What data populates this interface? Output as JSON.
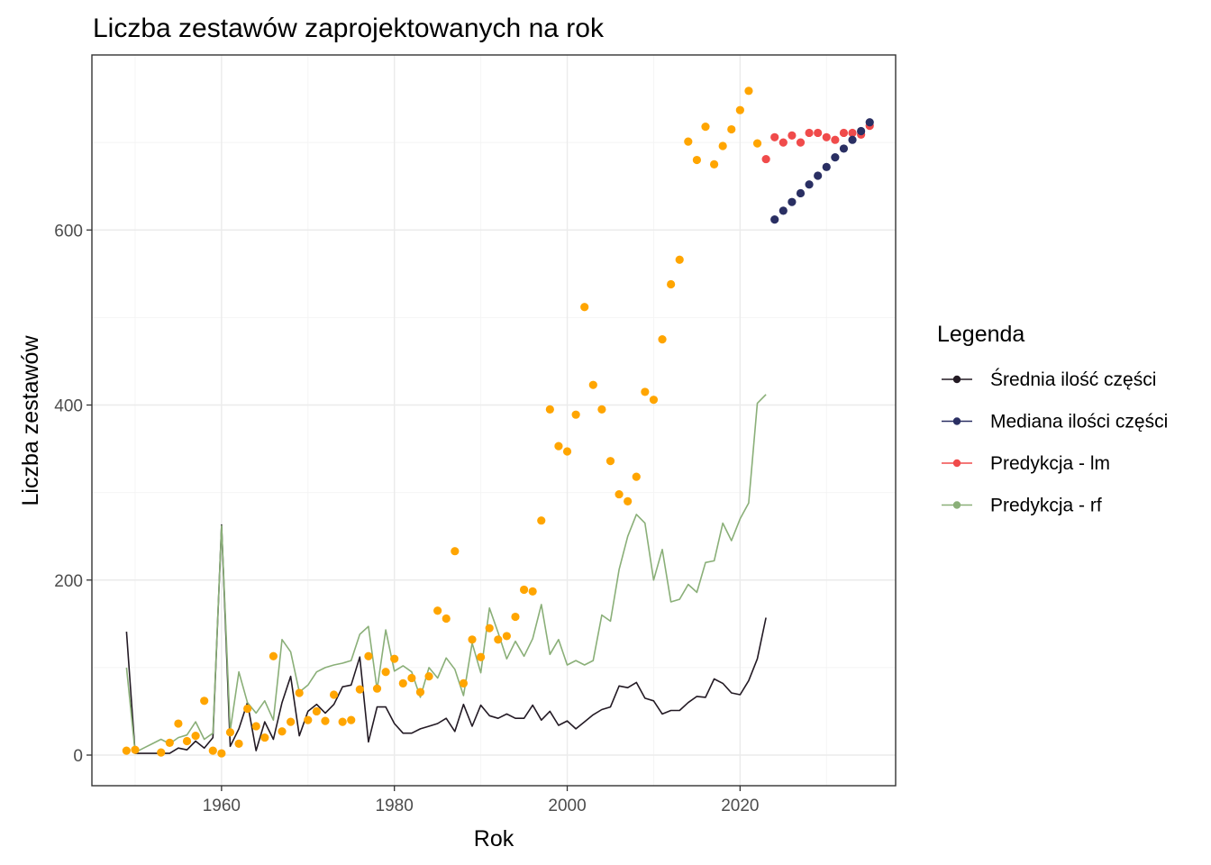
{
  "chart_data": {
    "type": "line",
    "title": "Liczba zestawów zaprojektowanych na rok",
    "xlabel": "Rok",
    "ylabel": "Liczba zestawów",
    "xlim": [
      1945,
      2038
    ],
    "ylim": [
      -35,
      800
    ],
    "x_ticks": [
      1960,
      1980,
      2000,
      2020
    ],
    "y_ticks": [
      0,
      200,
      400,
      600
    ],
    "grid": true,
    "legend": {
      "title": "Legenda",
      "position": "right",
      "entries": [
        {
          "label": "Średnia ilość części",
          "color": "#231a24"
        },
        {
          "label": "Mediana ilości części",
          "color": "#2a2f63"
        },
        {
          "label": "Predykcja - lm",
          "color": "#f04b4b"
        },
        {
          "label": "Predykcja - rf",
          "color": "#8aaf78"
        }
      ]
    },
    "series": [
      {
        "name": "Średnia ilość części",
        "kind": "line",
        "color": "#231a24",
        "points": [
          [
            1949,
            141
          ],
          [
            1950,
            2
          ],
          [
            1951,
            2
          ],
          [
            1952,
            2
          ],
          [
            1953,
            2
          ],
          [
            1954,
            2
          ],
          [
            1955,
            8
          ],
          [
            1956,
            6
          ],
          [
            1957,
            16
          ],
          [
            1958,
            8
          ],
          [
            1959,
            20
          ],
          [
            1960,
            263
          ],
          [
            1961,
            10
          ],
          [
            1962,
            30
          ],
          [
            1963,
            60
          ],
          [
            1964,
            5
          ],
          [
            1965,
            38
          ],
          [
            1966,
            18
          ],
          [
            1967,
            60
          ],
          [
            1968,
            90
          ],
          [
            1969,
            22
          ],
          [
            1970,
            50
          ],
          [
            1971,
            58
          ],
          [
            1972,
            48
          ],
          [
            1973,
            58
          ],
          [
            1974,
            78
          ],
          [
            1975,
            80
          ],
          [
            1976,
            112
          ],
          [
            1977,
            15
          ],
          [
            1978,
            55
          ],
          [
            1979,
            55
          ],
          [
            1980,
            36
          ],
          [
            1981,
            25
          ],
          [
            1982,
            25
          ],
          [
            1983,
            30
          ],
          [
            1984,
            33
          ],
          [
            1985,
            36
          ],
          [
            1986,
            42
          ],
          [
            1987,
            27
          ],
          [
            1988,
            58
          ],
          [
            1989,
            33
          ],
          [
            1990,
            57
          ],
          [
            1991,
            45
          ],
          [
            1992,
            42
          ],
          [
            1993,
            47
          ],
          [
            1994,
            42
          ],
          [
            1995,
            42
          ],
          [
            1996,
            57
          ],
          [
            1997,
            40
          ],
          [
            1998,
            50
          ],
          [
            1999,
            34
          ],
          [
            2000,
            39
          ],
          [
            2001,
            30
          ],
          [
            2002,
            38
          ],
          [
            2003,
            46
          ],
          [
            2004,
            52
          ],
          [
            2005,
            55
          ],
          [
            2006,
            79
          ],
          [
            2007,
            77
          ],
          [
            2008,
            83
          ],
          [
            2009,
            65
          ],
          [
            2010,
            62
          ],
          [
            2011,
            47
          ],
          [
            2012,
            51
          ],
          [
            2013,
            51
          ],
          [
            2014,
            60
          ],
          [
            2015,
            67
          ],
          [
            2016,
            66
          ],
          [
            2017,
            87
          ],
          [
            2018,
            82
          ],
          [
            2019,
            71
          ],
          [
            2020,
            69
          ],
          [
            2021,
            85
          ],
          [
            2022,
            110
          ],
          [
            2023,
            157
          ]
        ]
      },
      {
        "name": "Predykcja - rf",
        "kind": "line",
        "color": "#8aaf78",
        "points": [
          [
            1949,
            100
          ],
          [
            1950,
            3
          ],
          [
            1951,
            8
          ],
          [
            1952,
            13
          ],
          [
            1953,
            18
          ],
          [
            1954,
            13
          ],
          [
            1955,
            20
          ],
          [
            1956,
            23
          ],
          [
            1957,
            38
          ],
          [
            1958,
            18
          ],
          [
            1959,
            25
          ],
          [
            1960,
            262
          ],
          [
            1961,
            28
          ],
          [
            1962,
            95
          ],
          [
            1963,
            60
          ],
          [
            1964,
            48
          ],
          [
            1965,
            62
          ],
          [
            1966,
            40
          ],
          [
            1967,
            132
          ],
          [
            1968,
            118
          ],
          [
            1969,
            72
          ],
          [
            1970,
            80
          ],
          [
            1971,
            95
          ],
          [
            1972,
            100
          ],
          [
            1973,
            103
          ],
          [
            1974,
            105
          ],
          [
            1975,
            108
          ],
          [
            1976,
            138
          ],
          [
            1977,
            147
          ],
          [
            1978,
            75
          ],
          [
            1979,
            143
          ],
          [
            1980,
            96
          ],
          [
            1981,
            102
          ],
          [
            1982,
            95
          ],
          [
            1983,
            66
          ],
          [
            1984,
            100
          ],
          [
            1985,
            88
          ],
          [
            1986,
            111
          ],
          [
            1987,
            98
          ],
          [
            1988,
            68
          ],
          [
            1989,
            128
          ],
          [
            1990,
            94
          ],
          [
            1991,
            168
          ],
          [
            1992,
            140
          ],
          [
            1993,
            110
          ],
          [
            1994,
            130
          ],
          [
            1995,
            113
          ],
          [
            1996,
            133
          ],
          [
            1997,
            172
          ],
          [
            1998,
            115
          ],
          [
            1999,
            132
          ],
          [
            2000,
            103
          ],
          [
            2001,
            108
          ],
          [
            2002,
            103
          ],
          [
            2003,
            108
          ],
          [
            2004,
            160
          ],
          [
            2005,
            153
          ],
          [
            2006,
            212
          ],
          [
            2007,
            250
          ],
          [
            2008,
            275
          ],
          [
            2009,
            265
          ],
          [
            2010,
            200
          ],
          [
            2011,
            235
          ],
          [
            2012,
            175
          ],
          [
            2013,
            178
          ],
          [
            2014,
            195
          ],
          [
            2015,
            186
          ],
          [
            2016,
            220
          ],
          [
            2017,
            222
          ],
          [
            2018,
            265
          ],
          [
            2019,
            245
          ],
          [
            2020,
            270
          ],
          [
            2021,
            288
          ],
          [
            2022,
            402
          ],
          [
            2023,
            412
          ]
        ]
      },
      {
        "name": "Liczba zestawów",
        "kind": "scatter",
        "color": "#ffa500",
        "points": [
          [
            1949,
            5
          ],
          [
            1950,
            6
          ],
          [
            1953,
            3
          ],
          [
            1954,
            14
          ],
          [
            1955,
            36
          ],
          [
            1956,
            16
          ],
          [
            1957,
            22
          ],
          [
            1958,
            62
          ],
          [
            1959,
            5
          ],
          [
            1960,
            2
          ],
          [
            1961,
            26
          ],
          [
            1962,
            13
          ],
          [
            1963,
            53
          ],
          [
            1964,
            33
          ],
          [
            1965,
            20
          ],
          [
            1966,
            113
          ],
          [
            1967,
            27
          ],
          [
            1968,
            38
          ],
          [
            1969,
            71
          ],
          [
            1970,
            40
          ],
          [
            1971,
            50
          ],
          [
            1972,
            39
          ],
          [
            1973,
            69
          ],
          [
            1974,
            38
          ],
          [
            1975,
            40
          ],
          [
            1976,
            75
          ],
          [
            1977,
            113
          ],
          [
            1978,
            76
          ],
          [
            1979,
            95
          ],
          [
            1980,
            110
          ],
          [
            1981,
            82
          ],
          [
            1982,
            88
          ],
          [
            1983,
            72
          ],
          [
            1984,
            90
          ],
          [
            1985,
            165
          ],
          [
            1986,
            156
          ],
          [
            1987,
            233
          ],
          [
            1988,
            82
          ],
          [
            1989,
            132
          ],
          [
            1990,
            112
          ],
          [
            1991,
            145
          ],
          [
            1992,
            132
          ],
          [
            1993,
            136
          ],
          [
            1994,
            158
          ],
          [
            1995,
            189
          ],
          [
            1996,
            187
          ],
          [
            1997,
            268
          ],
          [
            1998,
            395
          ],
          [
            1999,
            353
          ],
          [
            2000,
            347
          ],
          [
            2001,
            389
          ],
          [
            2002,
            512
          ],
          [
            2003,
            423
          ],
          [
            2004,
            395
          ],
          [
            2005,
            336
          ],
          [
            2006,
            298
          ],
          [
            2007,
            290
          ],
          [
            2008,
            318
          ],
          [
            2009,
            415
          ],
          [
            2010,
            406
          ],
          [
            2011,
            475
          ],
          [
            2012,
            538
          ],
          [
            2013,
            566
          ],
          [
            2014,
            701
          ],
          [
            2015,
            680
          ],
          [
            2016,
            718
          ],
          [
            2017,
            675
          ],
          [
            2018,
            696
          ],
          [
            2019,
            715
          ],
          [
            2020,
            737
          ],
          [
            2021,
            759
          ],
          [
            2022,
            699
          ]
        ]
      },
      {
        "name": "Predykcja - lm",
        "kind": "scatter",
        "color": "#f04b4b",
        "points": [
          [
            2023,
            681
          ],
          [
            2024,
            706
          ],
          [
            2025,
            700
          ],
          [
            2026,
            708
          ],
          [
            2027,
            700
          ],
          [
            2028,
            711
          ],
          [
            2029,
            711
          ],
          [
            2030,
            706
          ],
          [
            2031,
            703
          ],
          [
            2032,
            711
          ],
          [
            2033,
            711
          ],
          [
            2034,
            709
          ],
          [
            2035,
            719
          ]
        ]
      },
      {
        "name": "Mediana ilości części",
        "kind": "scatter",
        "color": "#2a2f63",
        "points": [
          [
            2024,
            612
          ],
          [
            2025,
            622
          ],
          [
            2026,
            632
          ],
          [
            2027,
            642
          ],
          [
            2028,
            652
          ],
          [
            2029,
            662
          ],
          [
            2030,
            672
          ],
          [
            2031,
            683
          ],
          [
            2032,
            693
          ],
          [
            2033,
            703
          ],
          [
            2034,
            713
          ],
          [
            2035,
            723
          ]
        ]
      }
    ]
  }
}
